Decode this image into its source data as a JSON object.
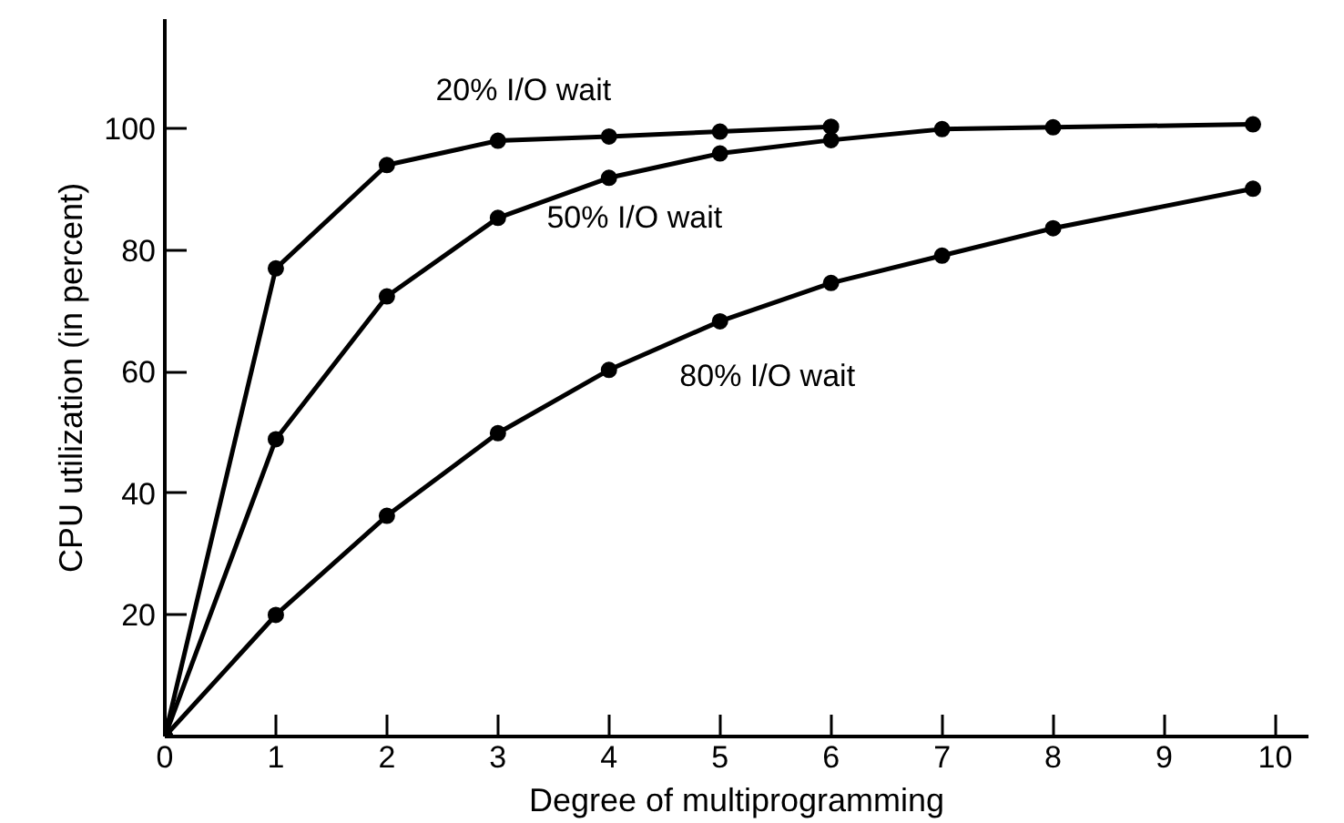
{
  "chart_data": {
    "type": "line",
    "xlabel": "Degree of multiprogramming",
    "ylabel": "CPU utilization (in percent)",
    "xlim": [
      0,
      10.3
    ],
    "ylim": [
      0,
      118
    ],
    "xticks": [
      0,
      1,
      2,
      3,
      4,
      5,
      6,
      7,
      8,
      9,
      10
    ],
    "yticks": [
      20,
      40,
      60,
      80,
      100
    ],
    "grid": false,
    "marker": "circle",
    "line_style": "solid",
    "series": [
      {
        "name": "20% I/O wait",
        "color": "#000000",
        "x": [
          0,
          1,
          2,
          3,
          4,
          5,
          6
        ],
        "values": [
          0,
          77,
          94,
          98,
          98.7,
          99.5,
          100.3
        ]
      },
      {
        "name": "50% I/O wait",
        "color": "#000000",
        "x": [
          0,
          1,
          2,
          3,
          4,
          5,
          6,
          7,
          8,
          9.8
        ],
        "values": [
          0,
          48.9,
          72.4,
          85.3,
          91.9,
          95.9,
          98.1,
          99.9,
          100.2,
          100.7
        ]
      },
      {
        "name": "80% I/O wait",
        "color": "#000000",
        "x": [
          0,
          1,
          2,
          3,
          4,
          5,
          6,
          7,
          8,
          9.8
        ],
        "values": [
          0,
          20,
          36.3,
          49.9,
          60.3,
          68.3,
          74.6,
          79.1,
          83.6,
          90.1
        ]
      }
    ]
  }
}
